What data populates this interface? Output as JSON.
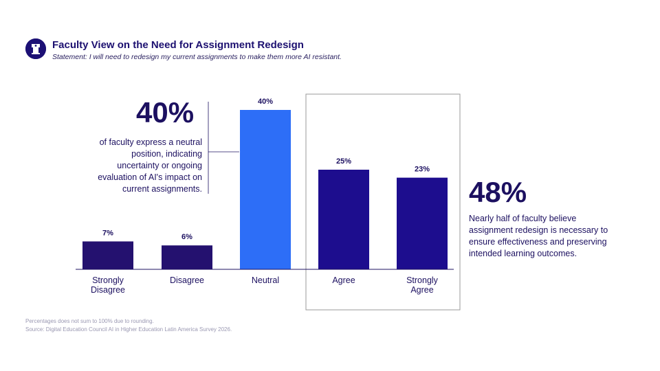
{
  "header": {
    "title": "Faculty View on the Need for Assignment Redesign",
    "subtitle": "Statement: I will need to redesign my current assignments to make them more AI resistant."
  },
  "callouts": {
    "left": {
      "value": "40%",
      "text": "of faculty express a neutral position, indicating uncertainty or ongoing evaluation of AI's impact on current assignments."
    },
    "right": {
      "value": "48%",
      "text": "Nearly half of faculty believe assignment redesign is necessary to ensure effectiveness and preserving intended learning outcomes."
    }
  },
  "footnotes": {
    "line1": "Percentages does not sum to 100% due to rounding.",
    "line2": "Source: Digital Education Council AI in Higher Education Latin America Survey 2026."
  },
  "colors": {
    "dark_bar": "#1d0d8e",
    "disagree_bar": "#24116f",
    "neutral_bar": "#2d6ef7",
    "text": "#1c1060",
    "box_border": "#9a9a9a"
  },
  "chart_data": {
    "type": "bar",
    "title": "Faculty View on the Need for Assignment Redesign",
    "categories": [
      [
        "Strongly",
        "Disagree"
      ],
      [
        "Disagree"
      ],
      [
        "Neutral"
      ],
      [
        "Agree"
      ],
      [
        "Strongly",
        "Agree"
      ]
    ],
    "values": [
      7,
      6,
      40,
      25,
      23
    ],
    "value_labels": [
      "7%",
      "6%",
      "40%",
      "25%",
      "23%"
    ],
    "bar_colors": [
      "#24116f",
      "#24116f",
      "#2d6ef7",
      "#1d0d8e",
      "#1d0d8e"
    ],
    "ylim": [
      0,
      40
    ],
    "highlighted_categories": [
      "Agree",
      "Strongly Agree"
    ],
    "xlabel": "",
    "ylabel": ""
  }
}
